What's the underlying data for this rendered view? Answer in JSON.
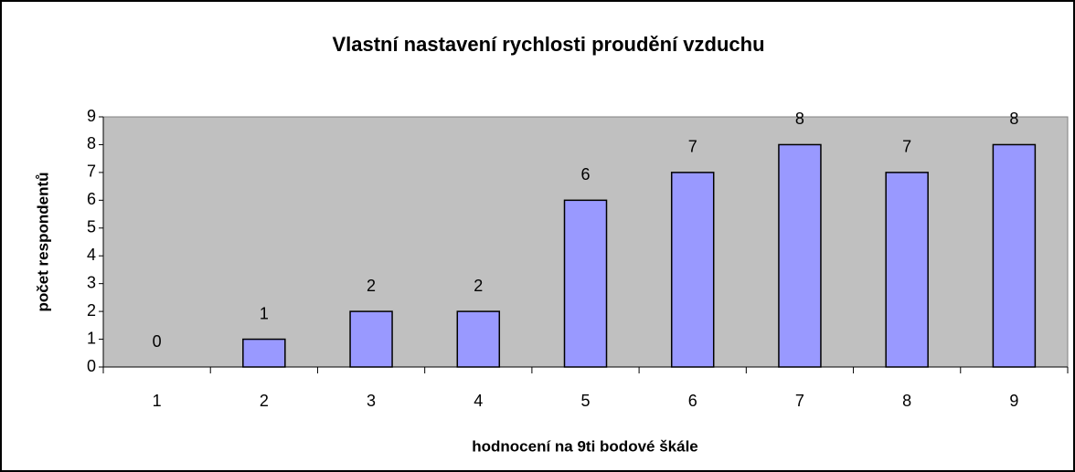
{
  "chart_data": {
    "type": "bar",
    "title": "Vlastní nastavení rychlosti proudění vzduchu",
    "x_label": "hodnocení na 9ti bodové škále",
    "y_label": "počet respondentů",
    "categories": [
      "1",
      "2",
      "3",
      "4",
      "5",
      "6",
      "7",
      "8",
      "9"
    ],
    "values": [
      0,
      1,
      2,
      2,
      6,
      7,
      8,
      7,
      8
    ],
    "color": "#9999ff",
    "ylim": [
      0,
      9
    ],
    "yticks": [
      0,
      1,
      2,
      3,
      4,
      5,
      6,
      7,
      8,
      9
    ],
    "grid": false
  }
}
